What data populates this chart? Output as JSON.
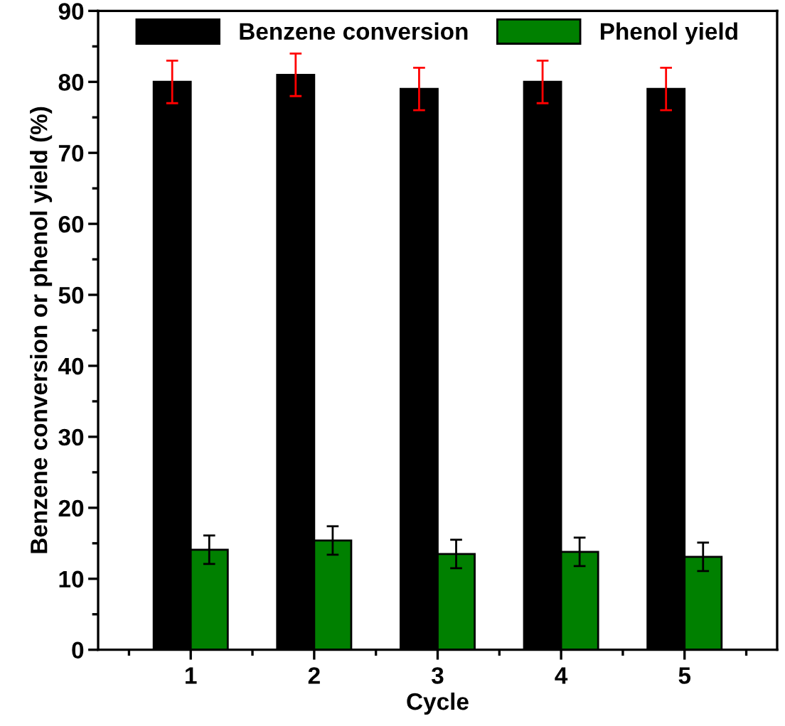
{
  "chart_data": {
    "type": "bar",
    "xlabel": "Cycle",
    "ylabel": "Benzene conversion or phenol yield (%)",
    "categories": [
      "1",
      "2",
      "3",
      "4",
      "5"
    ],
    "series": [
      {
        "name": "Benzene conversion",
        "color": "#000000",
        "values": [
          80,
          81,
          79,
          80,
          79
        ],
        "errors": [
          3,
          3,
          3,
          3,
          3
        ]
      },
      {
        "name": "Phenol yield",
        "color": "#008000",
        "values": [
          14.1,
          15.4,
          13.5,
          13.8,
          13.1
        ],
        "errors": [
          2,
          2,
          2,
          2,
          2
        ]
      }
    ],
    "ylim": [
      0,
      90
    ],
    "yticks": [
      0,
      10,
      20,
      30,
      40,
      50,
      60,
      70,
      80,
      90
    ],
    "grid": false,
    "legend": "top"
  }
}
